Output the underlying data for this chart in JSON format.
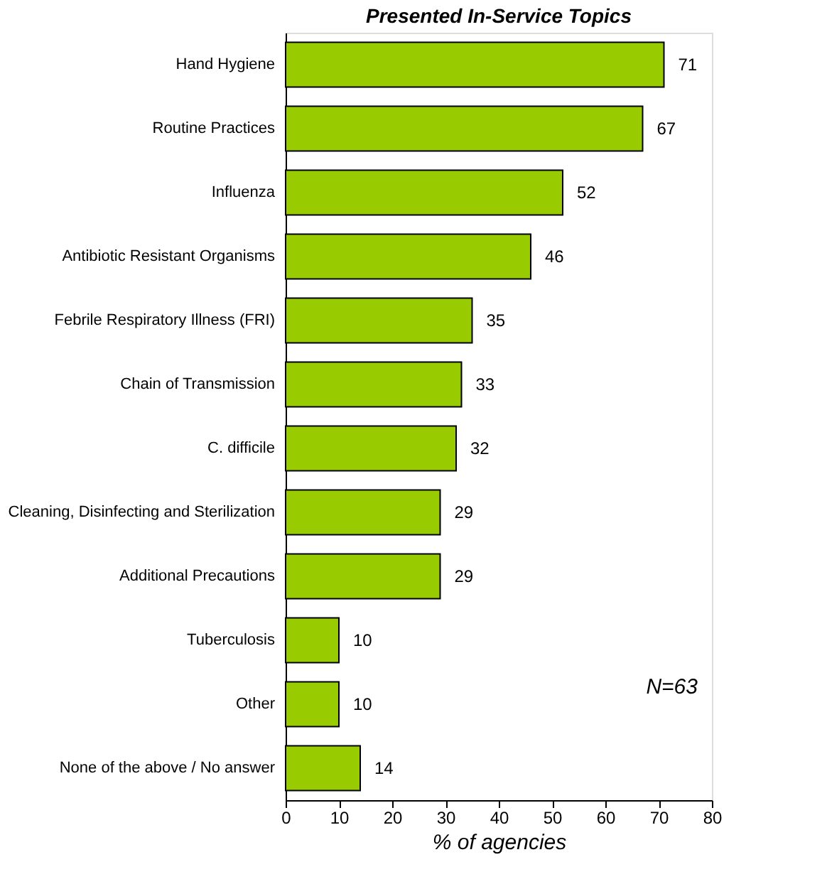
{
  "chart_data": {
    "type": "bar",
    "orientation": "horizontal",
    "title": "Presented In-Service Topics",
    "xlabel": "% of agencies",
    "categories": [
      "Hand Hygiene",
      "Routine Practices",
      "Influenza",
      "Antibiotic Resistant Organisms",
      "Febrile Respiratory Illness (FRI)",
      "Chain of Transmission",
      "C. difficile",
      "Cleaning, Disinfecting and Sterilization",
      "Additional Precautions",
      "Tuberculosis",
      "Other",
      "None of the above / No answer"
    ],
    "values": [
      71,
      67,
      52,
      46,
      35,
      33,
      32,
      29,
      29,
      10,
      10,
      14
    ],
    "color": "#99cc00",
    "xlim": [
      0,
      80
    ],
    "xticks": [
      0,
      10,
      20,
      30,
      40,
      50,
      60,
      70,
      80
    ],
    "grid": false,
    "data_labels": true,
    "annotations": [
      "N=63"
    ]
  }
}
